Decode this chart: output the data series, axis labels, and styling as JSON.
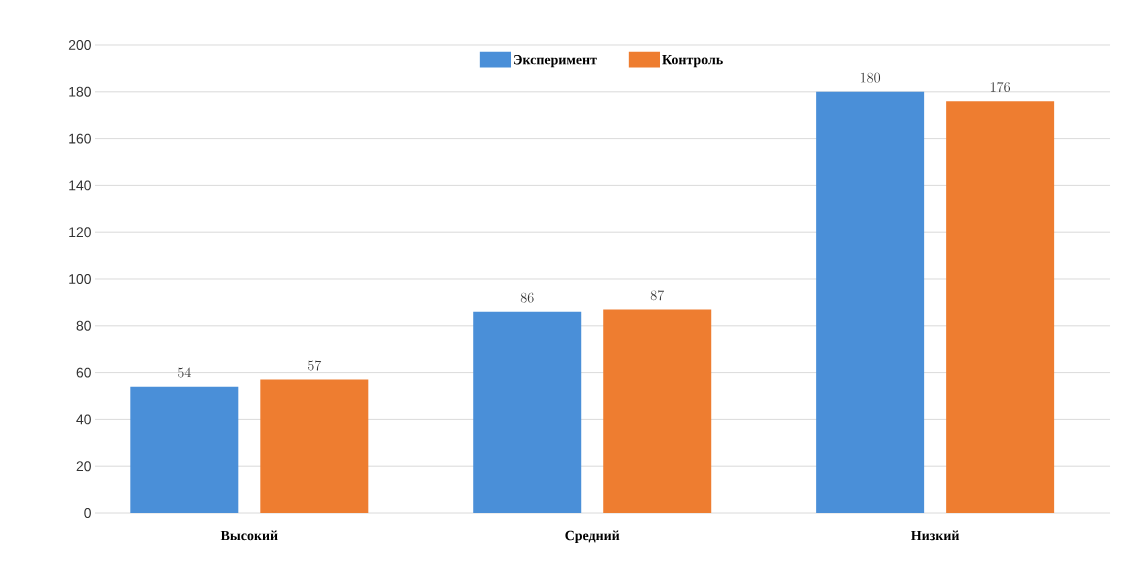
{
  "chart_data": {
    "type": "bar",
    "categories": [
      "Высокий",
      "Средний",
      "Низкий"
    ],
    "series": [
      {
        "name": "Эксперимент",
        "color": "#4a8fd8",
        "values": [
          54,
          86,
          180
        ]
      },
      {
        "name": "Контроль",
        "color": "#ee7d30",
        "values": [
          57,
          87,
          176
        ]
      }
    ],
    "ylim": [
      0,
      200
    ],
    "yticks": [
      0,
      20,
      40,
      60,
      80,
      100,
      120,
      140,
      160,
      180,
      200
    ],
    "grid": "y",
    "legend": "top",
    "data_labels": true
  }
}
